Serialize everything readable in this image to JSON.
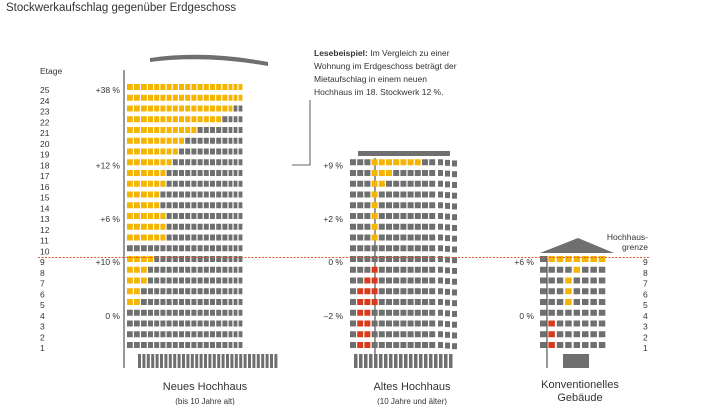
{
  "title": "Stockwerkaufschlag gegenüber Erdgeschoss",
  "axis_label": "Etage",
  "floors_left": [
    "25",
    "24",
    "23",
    "22",
    "21",
    "20",
    "19",
    "18",
    "17",
    "16",
    "15",
    "14",
    "13",
    "12",
    "11",
    "10",
    "9",
    "8",
    "7",
    "6",
    "5",
    "4",
    "3",
    "2",
    "1"
  ],
  "floors_right": [
    "9",
    "8",
    "7",
    "6",
    "5",
    "4",
    "3",
    "2",
    "1"
  ],
  "hochhaus_grenze": "Hochhaus-\ngrenze",
  "hochhaus_grenze_lines": [
    "Hochhaus-",
    "grenze"
  ],
  "note": {
    "bold": "Lesebeispiel:",
    "lines": [
      " Im Vergleich zu einer",
      "Wohnung im Erdgeschoss beträgt der",
      "Mietaufschlag in einem neuen",
      "Hochhaus im 18. Stockwerk 12 %."
    ]
  },
  "buildings": [
    {
      "name": "Neues Hochhaus",
      "sub": "(bis 10 Jahre alt)",
      "labels": [
        {
          "text": "+38 %",
          "floor": 25
        },
        {
          "text": "+12 %",
          "floor": 18
        },
        {
          "text": "+6 %",
          "floor": 13
        },
        {
          "text": "+10 %",
          "floor": 9
        },
        {
          "text": "0 %",
          "floor": 4
        }
      ]
    },
    {
      "name": "Altes Hochhaus",
      "sub": "(10 Jahre und älter)",
      "labels": [
        {
          "text": "+9 %",
          "floor": 18
        },
        {
          "text": "+2 %",
          "floor": 13
        },
        {
          "text": "0 %",
          "floor": 9
        },
        {
          "text": "–2 %",
          "floor": 4
        }
      ]
    },
    {
      "name_lines": [
        "Konventionelles",
        "Gebäude"
      ],
      "labels": [
        {
          "text": "+6 %",
          "floor": 9
        },
        {
          "text": "0 %",
          "floor": 4
        }
      ]
    }
  ],
  "colors": {
    "gray": "#6f6f6f",
    "yellow": "#f4b400",
    "red": "#d83b1c",
    "line": "#e05a2a",
    "text": "#333333"
  }
}
